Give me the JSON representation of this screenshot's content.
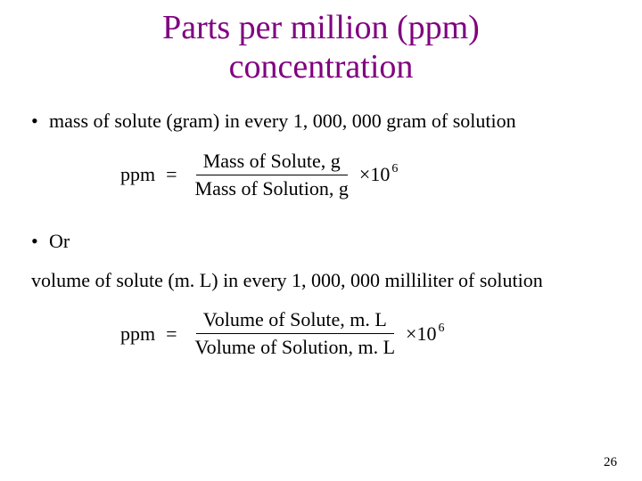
{
  "title": "Parts per million (ppm) concentration",
  "bullet1": "mass of solute (gram) in every 1, 000, 000 gram of solution",
  "formula1": {
    "lhs": "ppm",
    "eq": "=",
    "numerator": "Mass of Solute, g",
    "denominator": "Mass of Solution, g",
    "multiplier": "×10",
    "exponent": "6"
  },
  "bullet2": "Or",
  "subtext2": "volume of solute (m. L) in every 1, 000, 000 milliliter of solution",
  "formula2": {
    "lhs": "ppm",
    "eq": "=",
    "numerator": "Volume of Solute, m. L",
    "denominator": "Volume of Solution, m. L",
    "multiplier": "×10",
    "exponent": "6"
  },
  "pageNumber": "26",
  "colors": {
    "title": "#800080",
    "text": "#000000",
    "background": "#ffffff"
  }
}
